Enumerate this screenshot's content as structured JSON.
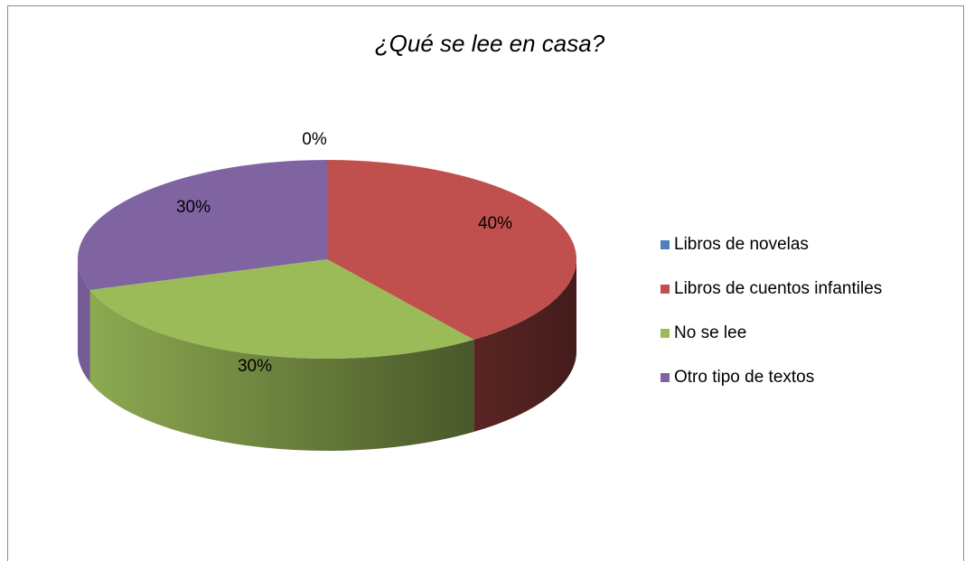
{
  "chart_data": {
    "type": "pie",
    "title": "¿Qué se lee en casa?",
    "categories": [
      "Libros de novelas",
      "Libros de cuentos infantiles",
      "No se lee",
      "Otro tipo de textos"
    ],
    "values": [
      0,
      40,
      30,
      30
    ],
    "value_labels": [
      "0%",
      "40%",
      "30%",
      "30%"
    ],
    "colors": [
      "#4f81bd",
      "#c0504d",
      "#9bbb59",
      "#8064a2"
    ],
    "legend": "right"
  }
}
